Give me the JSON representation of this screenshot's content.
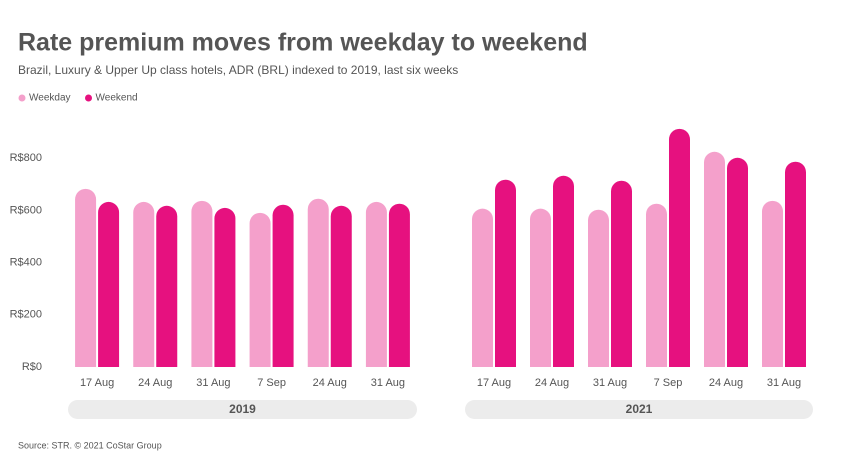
{
  "chart_data": {
    "type": "bar",
    "title": "Rate premium moves from weekday to weekend",
    "subtitle": "Brazil, Luxury & Upper Up class hotels, ADR (BRL) indexed to 2019, last six weeks",
    "source": "Source: STR. © 2021 CoStar Group",
    "groups": [
      "2019",
      "2021"
    ],
    "categories": [
      "17 Aug",
      "24 Aug",
      "31 Aug",
      "7 Sep",
      "24 Aug",
      "31 Aug",
      "17 Aug",
      "24 Aug",
      "31 Aug",
      "7 Sep",
      "24 Aug",
      "31 Aug"
    ],
    "series": [
      {
        "name": "Weekday",
        "color": "#f4a0cb",
        "values": [
          681,
          631,
          635,
          589,
          643,
          631,
          605,
          605,
          601,
          624,
          823,
          635
        ]
      },
      {
        "name": "Weekend",
        "color": "#e6117f",
        "values": [
          631,
          616,
          608,
          620,
          616,
          624,
          716,
          731,
          712,
          911,
          800,
          785
        ]
      }
    ],
    "ylim": [
      0,
      920
    ],
    "yticks": [
      {
        "value": 0,
        "label": "R$0"
      },
      {
        "value": 200,
        "label": "R$200"
      },
      {
        "value": 400,
        "label": "R$400"
      },
      {
        "value": 600,
        "label": "R$600"
      },
      {
        "value": 800,
        "label": "R$800"
      }
    ],
    "legend": "top-left"
  }
}
